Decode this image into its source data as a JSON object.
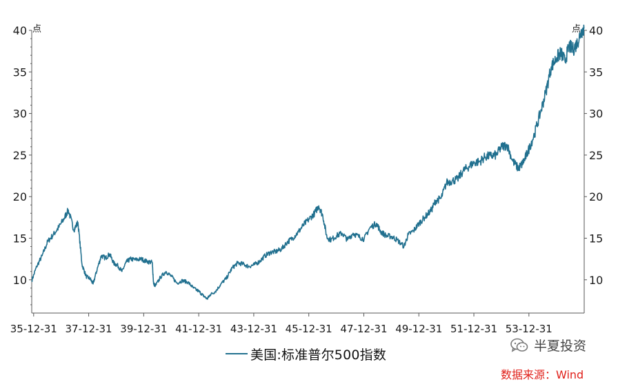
{
  "colors": {
    "series": "#21708f",
    "axis": "#555555",
    "source": "#e0201a"
  },
  "chart_data": {
    "type": "line",
    "title": "",
    "unit_left": "点",
    "unit_right": "点",
    "ylim": [
      6,
      40
    ],
    "yticks": [
      10,
      15,
      20,
      25,
      30,
      35,
      40
    ],
    "xlim": [
      1935.92,
      1956.0
    ],
    "x_tick_years": [
      1935.99,
      1937.99,
      1939.99,
      1941.99,
      1943.99,
      1945.99,
      1947.99,
      1949.99,
      1951.99,
      1953.99
    ],
    "x_tick_labels": [
      "35-12-31",
      "37-12-31",
      "39-12-31",
      "41-12-31",
      "43-12-31",
      "45-12-31",
      "47-12-31",
      "49-12-31",
      "51-12-31",
      "53-12-31"
    ],
    "grid": false,
    "legend_position": "bottom-center",
    "series": [
      {
        "name": "美国:标准普尔500指数",
        "x": [
          1935.92,
          1936.1,
          1936.3,
          1936.5,
          1936.7,
          1936.9,
          1937.1,
          1937.25,
          1937.45,
          1937.6,
          1937.75,
          1937.9,
          1938.05,
          1938.15,
          1938.3,
          1938.45,
          1938.6,
          1938.75,
          1938.9,
          1939.05,
          1939.2,
          1939.35,
          1939.5,
          1939.7,
          1939.9,
          1940.1,
          1940.3,
          1940.35,
          1940.42,
          1940.6,
          1940.8,
          1941.0,
          1941.2,
          1941.4,
          1941.6,
          1941.8,
          1942.0,
          1942.15,
          1942.3,
          1942.4,
          1942.6,
          1942.8,
          1943.0,
          1943.2,
          1943.4,
          1943.6,
          1943.8,
          1944.0,
          1944.2,
          1944.4,
          1944.6,
          1944.8,
          1945.0,
          1945.2,
          1945.4,
          1945.6,
          1945.8,
          1946.0,
          1946.2,
          1946.35,
          1946.5,
          1946.65,
          1946.8,
          1947.0,
          1947.2,
          1947.4,
          1947.6,
          1947.8,
          1948.0,
          1948.2,
          1948.45,
          1948.6,
          1948.8,
          1949.0,
          1949.2,
          1949.45,
          1949.6,
          1949.8,
          1950.0,
          1950.2,
          1950.45,
          1950.6,
          1950.8,
          1951.0,
          1951.2,
          1951.4,
          1951.6,
          1951.8,
          1952.0,
          1952.2,
          1952.4,
          1952.6,
          1952.8,
          1953.0,
          1953.2,
          1953.4,
          1953.6,
          1953.72,
          1953.85,
          1954.0,
          1954.2,
          1954.4,
          1954.6,
          1954.8,
          1955.0,
          1955.15,
          1955.3,
          1955.45,
          1955.6,
          1955.75,
          1955.9,
          1956.0
        ],
        "y": [
          9.9,
          11.6,
          12.9,
          14.6,
          15.4,
          16.3,
          17.4,
          18.4,
          16.0,
          16.9,
          11.8,
          10.4,
          10.1,
          9.5,
          11.3,
          12.9,
          12.6,
          13.1,
          12.0,
          11.7,
          11.0,
          12.1,
          12.5,
          12.4,
          12.5,
          12.2,
          12.1,
          9.5,
          9.3,
          10.3,
          11.0,
          10.4,
          9.6,
          9.9,
          9.7,
          9.0,
          8.6,
          8.1,
          7.7,
          8.2,
          8.6,
          9.5,
          10.2,
          11.4,
          12.0,
          11.9,
          11.6,
          11.8,
          12.2,
          12.9,
          13.3,
          13.4,
          13.7,
          14.5,
          15.0,
          15.7,
          16.6,
          17.3,
          18.0,
          18.9,
          17.7,
          15.1,
          14.8,
          15.3,
          15.6,
          14.8,
          15.6,
          15.2,
          14.9,
          16.2,
          16.8,
          15.8,
          15.3,
          15.2,
          14.8,
          14.0,
          15.4,
          15.9,
          16.8,
          17.5,
          18.4,
          19.5,
          19.8,
          21.7,
          21.9,
          22.1,
          23.1,
          23.6,
          24.1,
          24.2,
          24.8,
          24.9,
          25.0,
          26.0,
          26.2,
          24.3,
          23.4,
          23.8,
          24.6,
          25.8,
          27.6,
          30.0,
          32.5,
          35.6,
          36.7,
          37.3,
          36.3,
          38.1,
          37.7,
          38.5,
          39.9,
          40.2
        ]
      }
    ]
  },
  "legend": {
    "label": "美国:标准普尔500指数"
  },
  "watermark": {
    "icon": "wechat-icon",
    "text": "半夏投资"
  },
  "source_text": "数据来源：Wind"
}
